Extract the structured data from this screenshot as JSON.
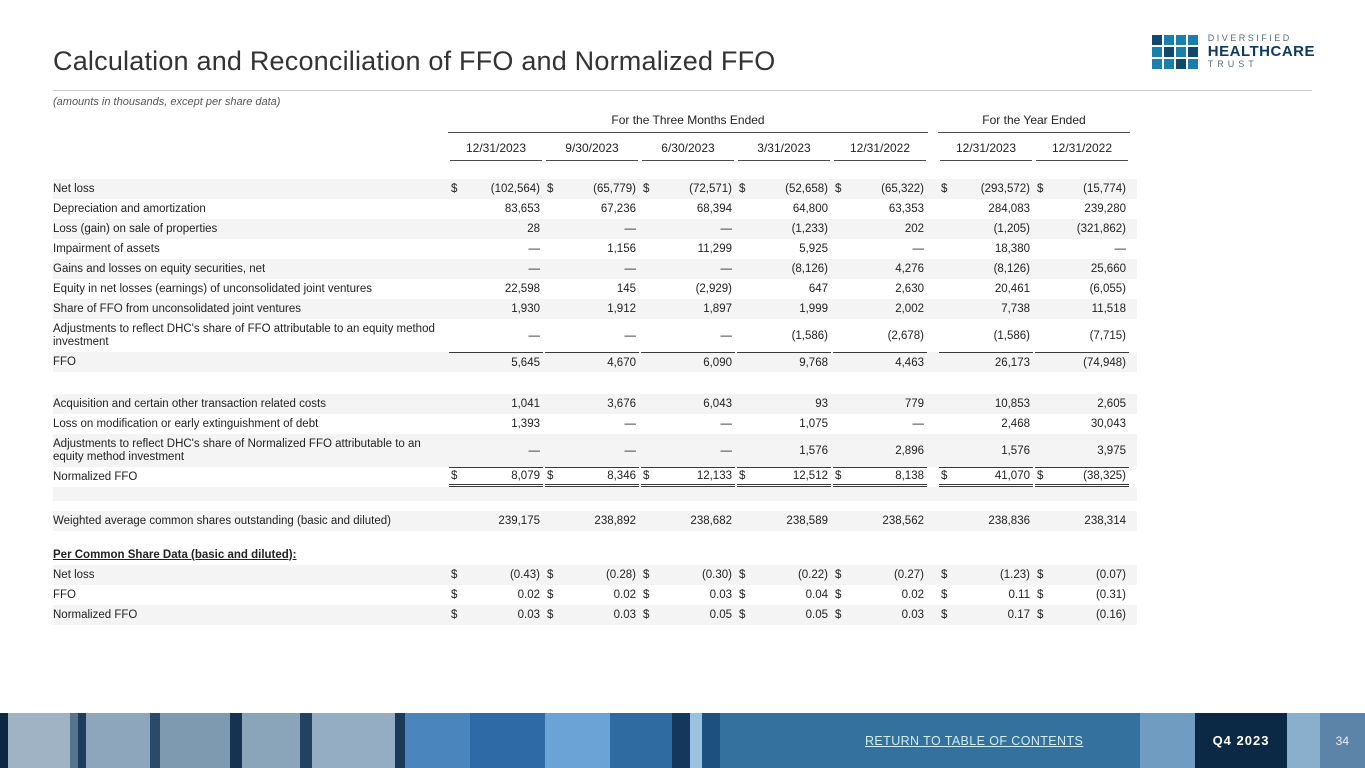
{
  "page": {
    "title": "Calculation and Reconciliation of FFO and Normalized FFO",
    "subtitle": "(amounts in thousands, except per share data)"
  },
  "logo": {
    "line1": "DIVERSIFIED",
    "line2": "HEALTHCARE",
    "line3": "TRUST",
    "accent_teal": "#1b7fae",
    "accent_navy": "#10486e"
  },
  "table": {
    "groups": [
      {
        "label": "For the Three Months Ended",
        "span": 5
      },
      {
        "label": "For the Year Ended",
        "span": 2
      }
    ],
    "columns": [
      "12/31/2023",
      "9/30/2023",
      "6/30/2023",
      "3/31/2023",
      "12/31/2022",
      "12/31/2023",
      "12/31/2022"
    ],
    "rows": [
      {
        "label": "Net loss",
        "dollar": true,
        "shade": true,
        "values": [
          "(102,564)",
          "(65,779)",
          "(72,571)",
          "(52,658)",
          "(65,322)",
          "(293,572)",
          "(15,774)"
        ]
      },
      {
        "label": "Depreciation and amortization",
        "values": [
          "83,653",
          "67,236",
          "68,394",
          "64,800",
          "63,353",
          "284,083",
          "239,280"
        ]
      },
      {
        "label": "Loss (gain) on sale of properties",
        "shade": true,
        "values": [
          "28",
          "—",
          "—",
          "(1,233)",
          "202",
          "(1,205)",
          "(321,862)"
        ]
      },
      {
        "label": "Impairment of assets",
        "values": [
          "—",
          "1,156",
          "11,299",
          "5,925",
          "—",
          "18,380",
          "—"
        ]
      },
      {
        "label": "Gains and losses on equity securities, net",
        "shade": true,
        "values": [
          "—",
          "—",
          "—",
          "(8,126)",
          "4,276",
          "(8,126)",
          "25,660"
        ]
      },
      {
        "label": "Equity in net losses (earnings) of unconsolidated joint ventures",
        "values": [
          "22,598",
          "145",
          "(2,929)",
          "647",
          "2,630",
          "20,461",
          "(6,055)"
        ]
      },
      {
        "label": "Share of FFO from unconsolidated joint ventures",
        "shade": true,
        "values": [
          "1,930",
          "1,912",
          "1,897",
          "1,999",
          "2,002",
          "7,738",
          "11,518"
        ]
      },
      {
        "label": "Adjustments to reflect DHC's share of FFO attributable to an equity method investment",
        "wrap": true,
        "values": [
          "—",
          "—",
          "—",
          "(1,586)",
          "(2,678)",
          "(1,586)",
          "(7,715)"
        ]
      },
      {
        "label": "FFO",
        "shade": true,
        "topline": true,
        "values": [
          "5,645",
          "4,670",
          "6,090",
          "9,768",
          "4,463",
          "26,173",
          "(74,948)"
        ]
      },
      {
        "blank": true,
        "height": 22
      },
      {
        "label": "Acquisition and certain other transaction related costs",
        "shade": true,
        "values": [
          "1,041",
          "3,676",
          "6,043",
          "93",
          "779",
          "10,853",
          "2,605"
        ]
      },
      {
        "label": "Loss on modification or early extinguishment of debt",
        "values": [
          "1,393",
          "—",
          "—",
          "1,075",
          "—",
          "2,468",
          "30,043"
        ]
      },
      {
        "label": "Adjustments to reflect DHC's share of Normalized FFO attributable to an equity method investment",
        "wrap": true,
        "shade": true,
        "values": [
          "—",
          "—",
          "—",
          "1,576",
          "2,896",
          "1,576",
          "3,975"
        ]
      },
      {
        "label": "Normalized FFO",
        "dollar": true,
        "topline": true,
        "doubleline": true,
        "values": [
          "8,079",
          "8,346",
          "12,133",
          "12,512",
          "8,138",
          "41,070",
          "(38,325)"
        ]
      },
      {
        "blank": true,
        "height": 14,
        "shade": true
      },
      {
        "blank": true,
        "height": 10
      },
      {
        "label": "Weighted average common shares outstanding (basic and diluted)",
        "shade": true,
        "values": [
          "239,175",
          "238,892",
          "238,682",
          "238,589",
          "238,562",
          "238,836",
          "238,314"
        ]
      },
      {
        "blank": true,
        "height": 14
      },
      {
        "label": "Per Common Share Data (basic and diluted):",
        "header": true
      },
      {
        "label": "Net loss",
        "dollar": true,
        "shade": true,
        "values": [
          "(0.43)",
          "(0.28)",
          "(0.30)",
          "(0.22)",
          "(0.27)",
          "(1.23)",
          "(0.07)"
        ]
      },
      {
        "label": "FFO",
        "dollar": true,
        "values": [
          "0.02",
          "0.02",
          "0.03",
          "0.04",
          "0.02",
          "0.11",
          "(0.31)"
        ]
      },
      {
        "label": "Normalized FFO",
        "dollar": true,
        "shade": true,
        "values": [
          "0.03",
          "0.03",
          "0.05",
          "0.05",
          "0.03",
          "0.17",
          "(0.16)"
        ]
      }
    ]
  },
  "footer": {
    "link": "RETURN TO TABLE OF CONTENTS",
    "period": "Q4 2023",
    "page_number": "34"
  }
}
